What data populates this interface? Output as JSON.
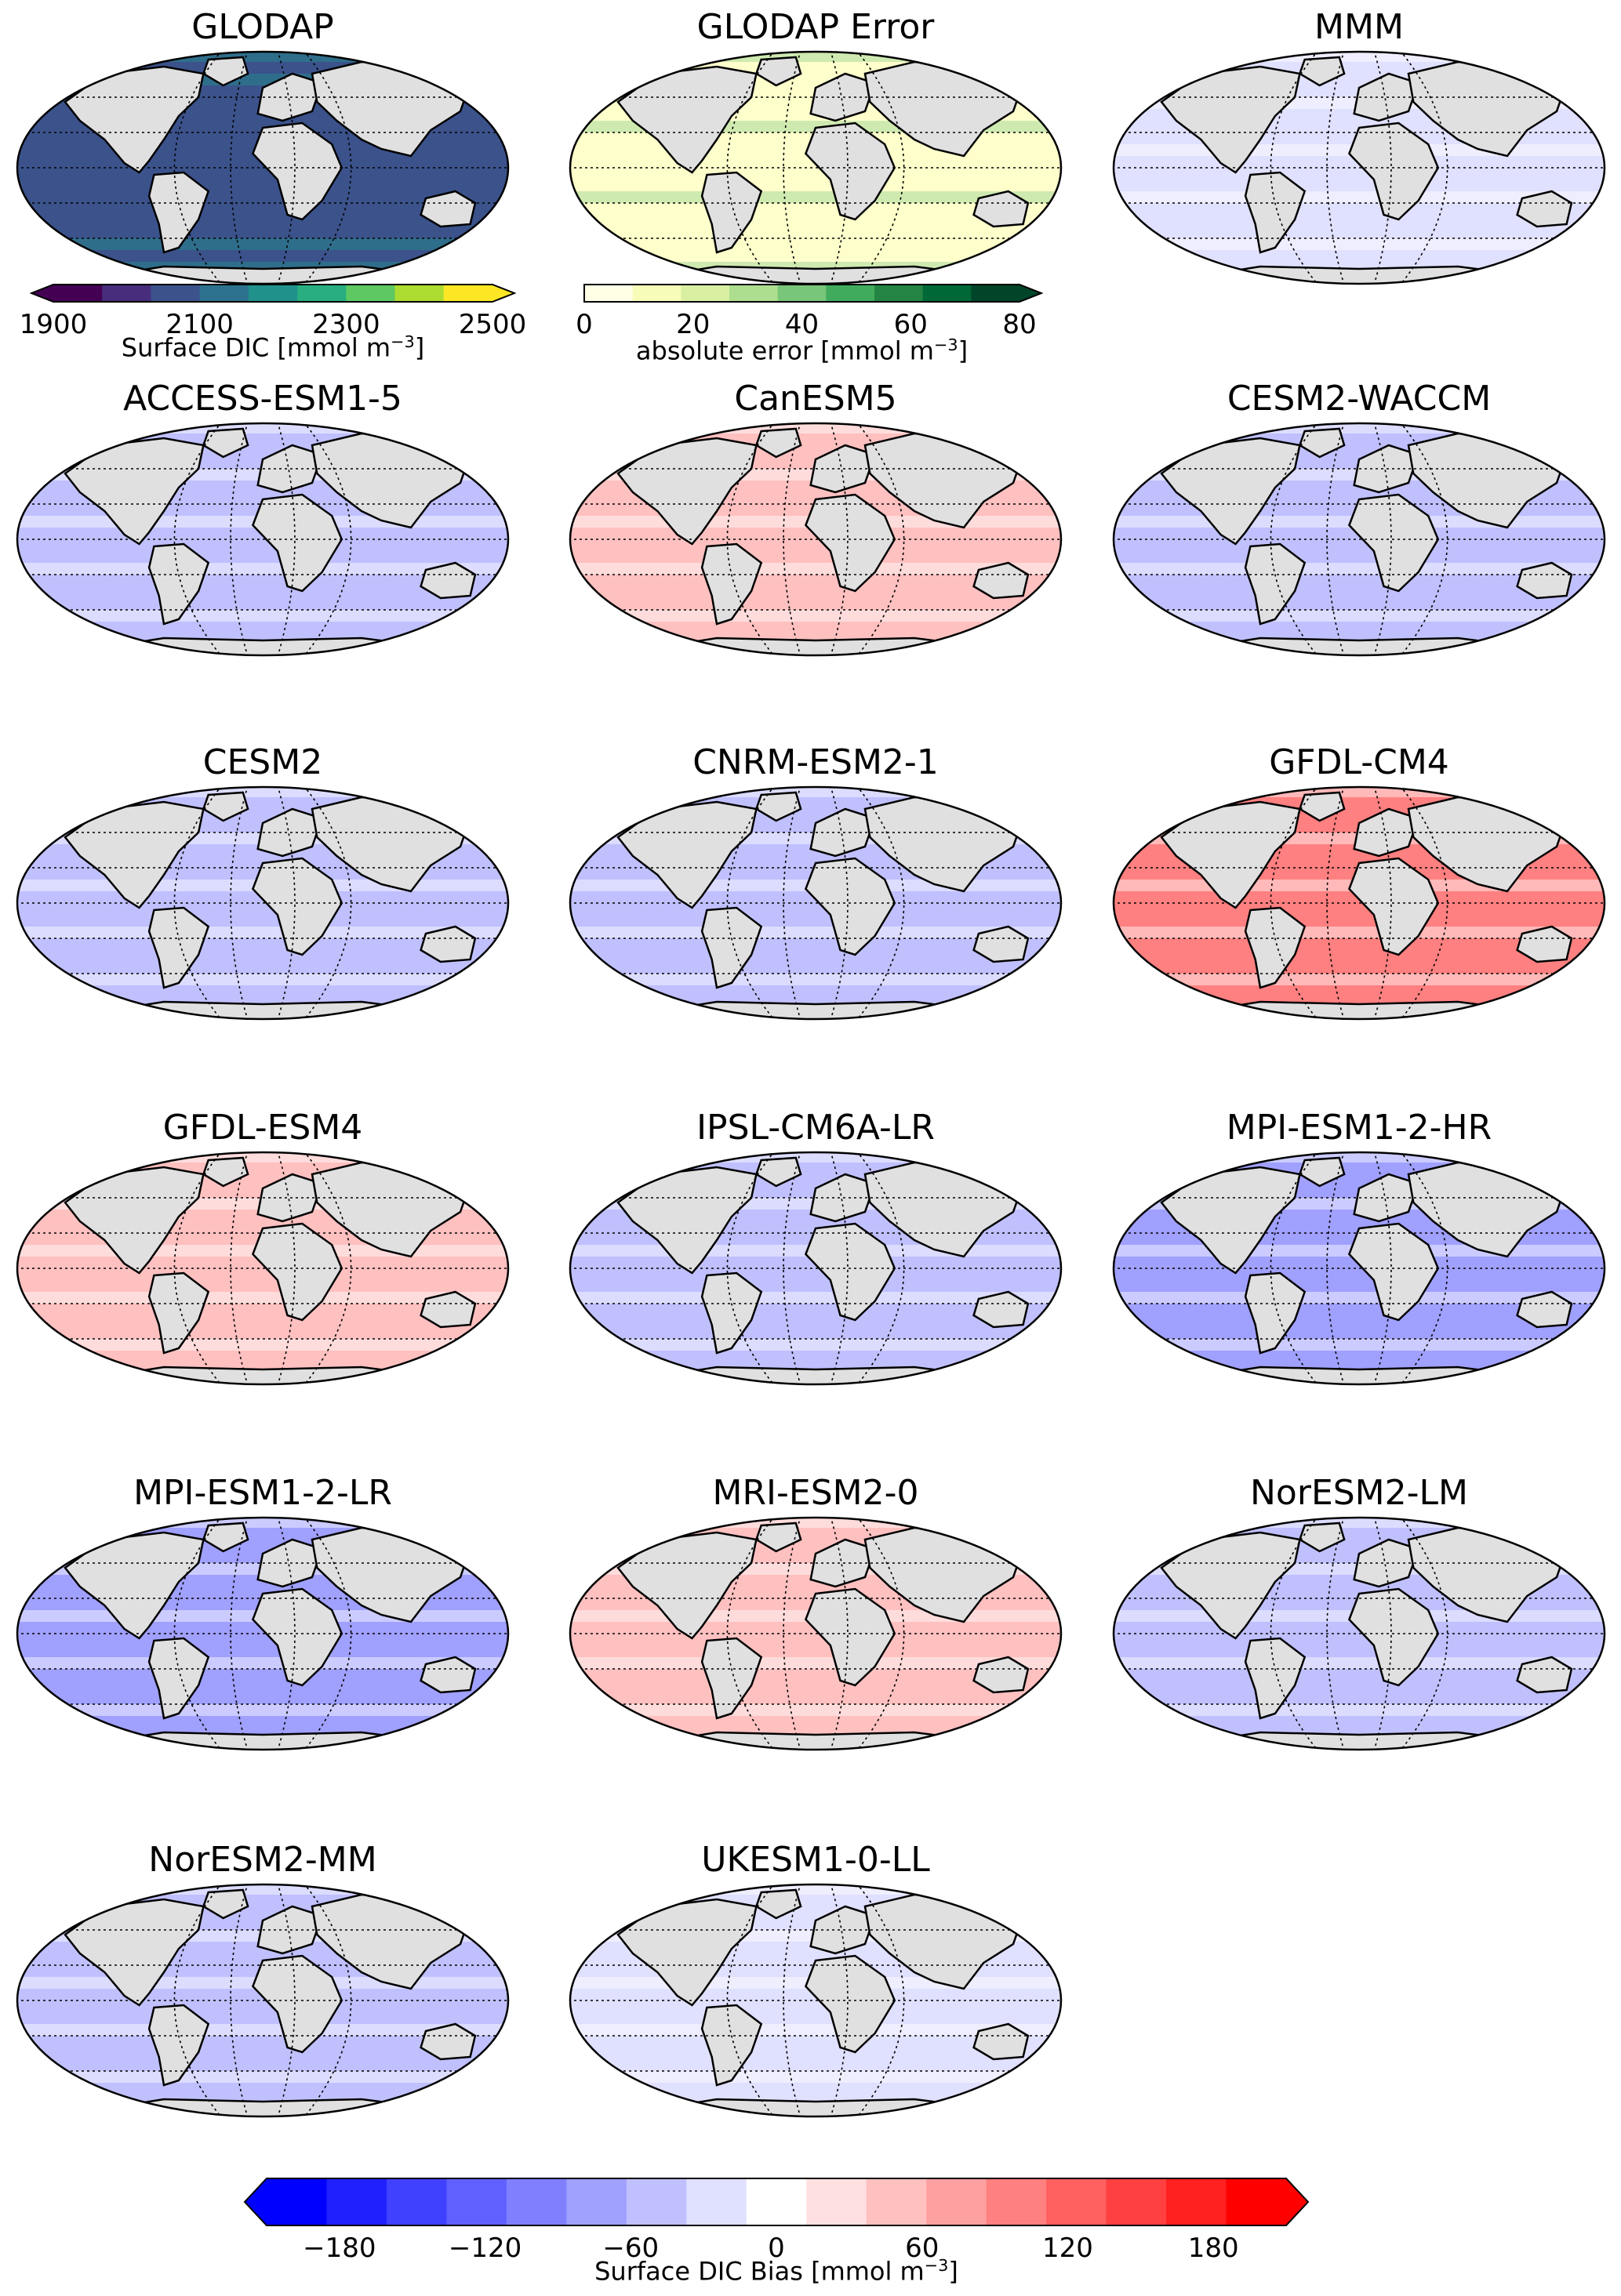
{
  "panels": [
    {
      "id": "glodap",
      "title": "GLODAP",
      "field": "dic"
    },
    {
      "id": "glodap-error",
      "title": "GLODAP Error",
      "field": "error"
    },
    {
      "id": "mmm",
      "title": "MMM",
      "field": "bias",
      "bias": "slight-negative"
    },
    {
      "id": "access-esm1-5",
      "title": "ACCESS-ESM1-5",
      "field": "bias",
      "bias": "negative"
    },
    {
      "id": "canesm5",
      "title": "CanESM5",
      "field": "bias",
      "bias": "positive"
    },
    {
      "id": "cesm2-waccm",
      "title": "CESM2-WACCM",
      "field": "bias",
      "bias": "negative"
    },
    {
      "id": "cesm2",
      "title": "CESM2",
      "field": "bias",
      "bias": "negative"
    },
    {
      "id": "cnrm-esm2-1",
      "title": "CNRM-ESM2-1",
      "field": "bias",
      "bias": "negative"
    },
    {
      "id": "gfdl-cm4",
      "title": "GFDL-CM4",
      "field": "bias",
      "bias": "strong-positive"
    },
    {
      "id": "gfdl-esm4",
      "title": "GFDL-ESM4",
      "field": "bias",
      "bias": "positive"
    },
    {
      "id": "ipsl-cm6a-lr",
      "title": "IPSL-CM6A-LR",
      "field": "bias",
      "bias": "negative"
    },
    {
      "id": "mpi-esm1-2-hr",
      "title": "MPI-ESM1-2-HR",
      "field": "bias",
      "bias": "strong-negative"
    },
    {
      "id": "mpi-esm1-2-lr",
      "title": "MPI-ESM1-2-LR",
      "field": "bias",
      "bias": "strong-negative"
    },
    {
      "id": "mri-esm2-0",
      "title": "MRI-ESM2-0",
      "field": "bias",
      "bias": "positive"
    },
    {
      "id": "noresm2-lm",
      "title": "NorESM2-LM",
      "field": "bias",
      "bias": "negative"
    },
    {
      "id": "noresm2-mm",
      "title": "NorESM2-MM",
      "field": "bias",
      "bias": "negative"
    },
    {
      "id": "ukesm1-0-ll",
      "title": "UKESM1-0-LL",
      "field": "bias",
      "bias": "slight-negative"
    }
  ],
  "colorbars": {
    "dic": {
      "label_text": "Surface DIC [mmol m",
      "label_sup": "−3",
      "label_close": "]",
      "ticks": [
        "1900",
        "2100",
        "2300",
        "2500"
      ],
      "range": [
        1900,
        2500
      ],
      "colors": [
        "#440154",
        "#472d7b",
        "#3b528b",
        "#2c728e",
        "#21918c",
        "#28ae80",
        "#5ec962",
        "#addc30",
        "#fde725"
      ]
    },
    "error": {
      "label_text": "absolute error [mmol m",
      "label_sup": "−3",
      "label_close": "]",
      "ticks": [
        "0",
        "20",
        "40",
        "60",
        "80"
      ],
      "range": [
        0,
        80
      ],
      "colors": [
        "#ffffe5",
        "#f7fcb9",
        "#d9f0a3",
        "#addd8e",
        "#78c679",
        "#41ab5d",
        "#238443",
        "#006837",
        "#004529"
      ]
    },
    "bias": {
      "label_text": "Surface DIC Bias [mmol m",
      "label_sup": "−3",
      "label_close": "]",
      "ticks": [
        "−180",
        "−120",
        "−60",
        "0",
        "60",
        "120",
        "180"
      ],
      "tick_values": [
        -180,
        -120,
        -60,
        0,
        60,
        120,
        180
      ],
      "range": [
        -210,
        210
      ],
      "colors": [
        "#0000ff",
        "#2020ff",
        "#4040ff",
        "#6060ff",
        "#8080ff",
        "#a0a0ff",
        "#c0c0ff",
        "#e0e0ff",
        "#ffffff",
        "#ffe0e0",
        "#ffc0c0",
        "#ffa0a0",
        "#ff8080",
        "#ff6060",
        "#ff4040",
        "#ff2020",
        "#ff0000"
      ]
    }
  },
  "map_colors": {
    "land": "#e0e0e0",
    "coast": "#000000",
    "grid": "#000000",
    "dic_low": "#3b528b",
    "dic_mid": "#21918c",
    "dic_high": "#5ec962",
    "error_low": "#ffffcc",
    "error_high": "#41ab5d"
  }
}
